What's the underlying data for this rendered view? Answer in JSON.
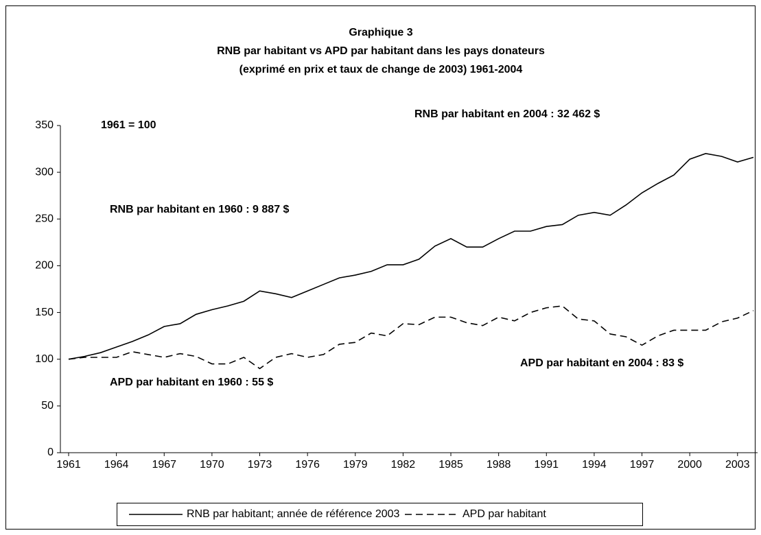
{
  "chart_data": {
    "type": "line",
    "title": [
      "Graphique 3",
      "RNB par habitant vs APD par habitant dans les pays donateurs",
      "(exprimé en prix et taux de change de 2003) 1961-2004"
    ],
    "annotations": [
      "1961 = 100",
      "RNB par habitant en 2004 : 32 462 $",
      "RNB par habitant en 1960 : 9 887 $",
      "APD par habitant en 1960 : 55 $",
      "APD par habitant en 2004 : 83 $"
    ],
    "x": [
      1961,
      1962,
      1963,
      1964,
      1965,
      1966,
      1967,
      1968,
      1969,
      1970,
      1971,
      1972,
      1973,
      1974,
      1975,
      1976,
      1977,
      1978,
      1979,
      1980,
      1981,
      1982,
      1983,
      1984,
      1985,
      1986,
      1987,
      1988,
      1989,
      1990,
      1991,
      1992,
      1993,
      1994,
      1995,
      1996,
      1997,
      1998,
      1999,
      2000,
      2001,
      2002,
      2003,
      2004
    ],
    "series": [
      {
        "name": "RNB par habitant; année de référence 2003",
        "color": "#000000",
        "line_style": "solid",
        "values": [
          100,
          103,
          107,
          113,
          119,
          126,
          135,
          138,
          148,
          153,
          157,
          162,
          173,
          170,
          166,
          173,
          180,
          187,
          190,
          194,
          201,
          201,
          207,
          221,
          229,
          220,
          220,
          229,
          237,
          237,
          242,
          244,
          254,
          257,
          254,
          265,
          278,
          288,
          297,
          314,
          320,
          317,
          311,
          316
        ]
      },
      {
        "name": "APD par habitant",
        "color": "#000000",
        "line_style": "dashed",
        "values": [
          100,
          102,
          102,
          102,
          108,
          105,
          102,
          106,
          103,
          95,
          95,
          102,
          90,
          102,
          106,
          102,
          105,
          116,
          118,
          128,
          125,
          138,
          137,
          145,
          145,
          139,
          136,
          145,
          141,
          150,
          155,
          157,
          143,
          141,
          127,
          124,
          115,
          125,
          131,
          131,
          131,
          140,
          144,
          152
        ]
      }
    ],
    "xlim": [
      1961,
      2004
    ],
    "xticks": [
      1961,
      1964,
      1967,
      1970,
      1973,
      1976,
      1979,
      1982,
      1985,
      1988,
      1991,
      1994,
      1997,
      2000,
      2003
    ],
    "ylim": [
      0,
      350
    ],
    "yticks": [
      0,
      50,
      100,
      150,
      200,
      250,
      300,
      350
    ],
    "legend": "bottom"
  }
}
